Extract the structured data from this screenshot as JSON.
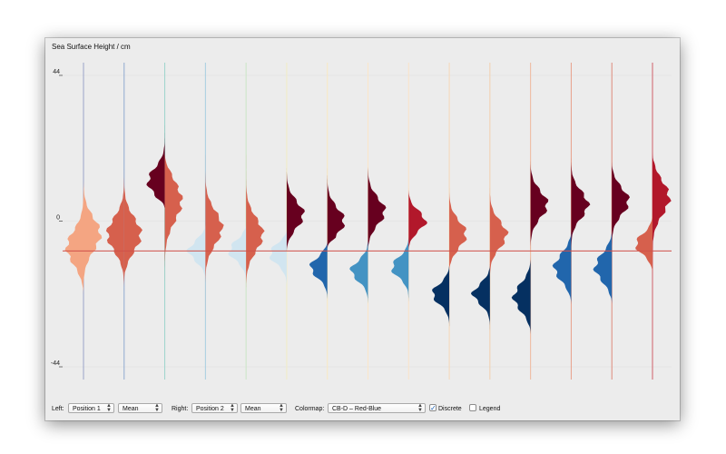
{
  "window": {
    "title": "Sea Surface Height / cm"
  },
  "controls": {
    "left_label": "Left:",
    "left_position": "Position 1",
    "left_stat": "Mean",
    "right_label": "Right:",
    "right_position": "Position 2",
    "right_stat": "Mean",
    "colormap_label": "Colormap:",
    "colormap_value": "CB-D – Red-Blue",
    "discrete_label": "Discrete",
    "discrete_checked": true,
    "legend_label": "Legend",
    "legend_checked": false
  },
  "chart_data": {
    "type": "split-violin",
    "title": "Sea Surface Height / cm",
    "ylabel": "",
    "ylim": [
      -44,
      44
    ],
    "yticks": [
      44,
      0,
      -44
    ],
    "reference_line": -9,
    "colors": {
      "reference_line": "#d0504a",
      "tick_line": "#cfcfcf"
    },
    "violins": [
      {
        "left": {
          "mean": -8,
          "min": -22,
          "max": 13,
          "sd": 5,
          "color": "#f4a582"
        },
        "right": {
          "mean": -4,
          "min": -20,
          "max": 13,
          "sd": 5,
          "color": "#f4a582"
        },
        "line_color": "#9aa3c7"
      },
      {
        "left": {
          "mean": -4,
          "min": -21,
          "max": 15,
          "sd": 5,
          "color": "#d6604d"
        },
        "right": {
          "mean": -4,
          "min": -18,
          "max": 16,
          "sd": 5,
          "color": "#d6604d"
        },
        "line_color": "#8fa9cf"
      },
      {
        "left": {
          "mean": 12,
          "min": 4,
          "max": 29,
          "sd": 4,
          "color": "#67001f"
        },
        "right": {
          "mean": 6,
          "min": -18,
          "max": 20,
          "sd": 6,
          "color": "#d6604d"
        },
        "line_color": "#9cd4cc"
      },
      {
        "left": {
          "mean": -9,
          "min": -18,
          "max": -1,
          "sd": 3,
          "color": "#d1e5f0"
        },
        "right": {
          "mean": -2,
          "min": -27,
          "max": 20,
          "sd": 5,
          "color": "#d6604d"
        },
        "line_color": "#a6cde0"
      },
      {
        "left": {
          "mean": -9,
          "min": -18,
          "max": -1,
          "sd": 3,
          "color": "#d1e5f0"
        },
        "right": {
          "mean": -4,
          "min": -20,
          "max": 20,
          "sd": 5,
          "color": "#d6604d"
        },
        "line_color": "#cbe6c6"
      },
      {
        "left": {
          "mean": -10,
          "min": -20,
          "max": -3,
          "sd": 3,
          "color": "#d1e5f0"
        },
        "right": {
          "mean": 2,
          "min": -9,
          "max": 16,
          "sd": 4,
          "color": "#67001f"
        },
        "line_color": "#f2edc4"
      },
      {
        "left": {
          "mean": -14,
          "min": -24,
          "max": -6,
          "sd": 3,
          "color": "#2166ac"
        },
        "right": {
          "mean": 0,
          "min": -8,
          "max": 16,
          "sd": 4,
          "color": "#67001f"
        },
        "line_color": "#f8e8c3"
      },
      {
        "left": {
          "mean": -15,
          "min": -26,
          "max": -5,
          "sd": 3,
          "color": "#4393c3"
        },
        "right": {
          "mean": 3,
          "min": -9,
          "max": 17,
          "sd": 4,
          "color": "#67001f"
        },
        "line_color": "#fbe7c9"
      },
      {
        "left": {
          "mean": -14,
          "min": -25,
          "max": -4,
          "sd": 3,
          "color": "#4393c3"
        },
        "right": {
          "mean": 0,
          "min": -9,
          "max": 10,
          "sd": 3,
          "color": "#b2182b"
        },
        "line_color": "#fae3c8"
      },
      {
        "left": {
          "mean": -22,
          "min": -32,
          "max": -13,
          "sd": 3,
          "color": "#053061"
        },
        "right": {
          "mean": -4,
          "min": -15,
          "max": 10,
          "sd": 4,
          "color": "#d6604d"
        },
        "line_color": "#f6d8b8"
      },
      {
        "left": {
          "mean": -22,
          "min": -33,
          "max": -13,
          "sd": 3,
          "color": "#053061"
        },
        "right": {
          "mean": -4,
          "min": -18,
          "max": 10,
          "sd": 4,
          "color": "#d6604d"
        },
        "line_color": "#f2cfae"
      },
      {
        "left": {
          "mean": -23,
          "min": -34,
          "max": -11,
          "sd": 4,
          "color": "#053061"
        },
        "right": {
          "mean": 5,
          "min": -9,
          "max": 18,
          "sd": 4,
          "color": "#67001f"
        },
        "line_color": "#eeb89d"
      },
      {
        "left": {
          "mean": -14,
          "min": -25,
          "max": -3,
          "sd": 4,
          "color": "#2166ac"
        },
        "right": {
          "mean": 5,
          "min": -9,
          "max": 19,
          "sd": 4,
          "color": "#67001f"
        },
        "line_color": "#e8a08a"
      },
      {
        "left": {
          "mean": -14,
          "min": -25,
          "max": -3,
          "sd": 4,
          "color": "#2166ac"
        },
        "right": {
          "mean": 6,
          "min": -9,
          "max": 18,
          "sd": 4,
          "color": "#67001f"
        },
        "line_color": "#de8a7b"
      },
      {
        "left": {
          "mean": -7,
          "min": -16,
          "max": 4,
          "sd": 3,
          "color": "#d6604d"
        },
        "right": {
          "mean": 7,
          "min": -14,
          "max": 21,
          "sd": 5,
          "color": "#b2182b"
        },
        "line_color": "#d0616a"
      }
    ]
  }
}
